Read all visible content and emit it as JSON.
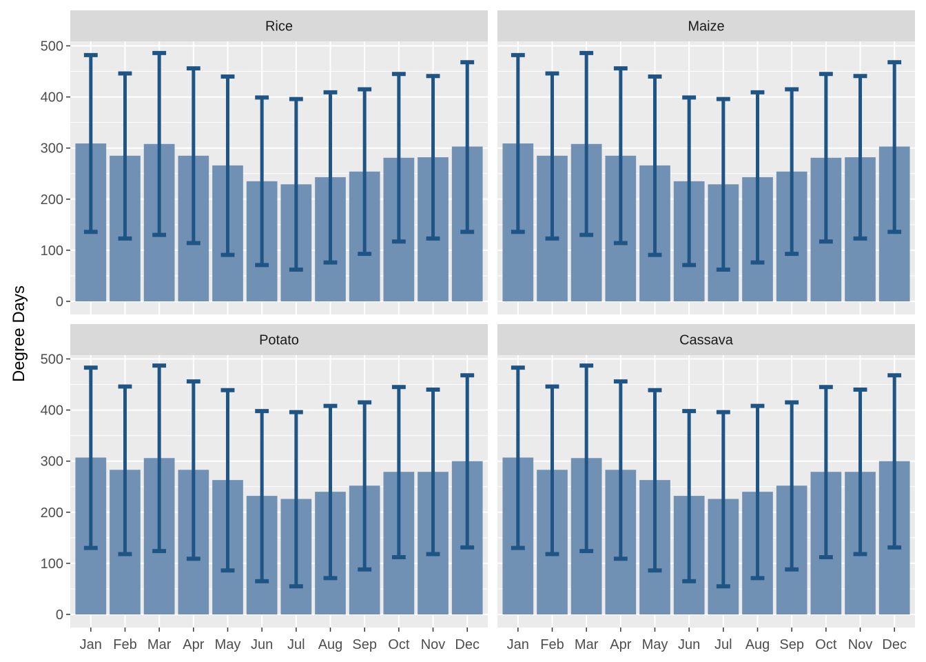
{
  "chart_data": {
    "type": "bar",
    "ylabel": "Degree Days",
    "xlabel": "",
    "ylim": [
      0,
      500
    ],
    "y_ticks": [
      0,
      100,
      200,
      300,
      400,
      500
    ],
    "categories": [
      "Jan",
      "Feb",
      "Mar",
      "Apr",
      "May",
      "Jun",
      "Jul",
      "Aug",
      "Sep",
      "Oct",
      "Nov",
      "Dec"
    ],
    "grid": true,
    "colors": {
      "bar": "#7191B4",
      "errorbar": "#1F5585",
      "panel_bg": "#EBEBEB",
      "strip_bg": "#D9D9D9",
      "grid": "#FFFFFF"
    },
    "panels": [
      {
        "name": "Rice",
        "values": [
          309,
          285,
          308,
          285,
          266,
          235,
          229,
          243,
          254,
          281,
          282,
          303
        ],
        "lower": [
          136,
          123,
          130,
          114,
          91,
          71,
          62,
          76,
          93,
          117,
          123,
          136
        ],
        "upper": [
          482,
          446,
          486,
          456,
          440,
          399,
          396,
          409,
          415,
          445,
          441,
          468
        ]
      },
      {
        "name": "Maize",
        "values": [
          309,
          285,
          308,
          285,
          266,
          235,
          229,
          243,
          254,
          281,
          282,
          303
        ],
        "lower": [
          136,
          123,
          130,
          114,
          91,
          71,
          62,
          76,
          93,
          117,
          123,
          136
        ],
        "upper": [
          482,
          446,
          486,
          456,
          440,
          399,
          396,
          409,
          415,
          445,
          441,
          468
        ]
      },
      {
        "name": "Potato",
        "values": [
          307,
          283,
          306,
          283,
          263,
          232,
          226,
          240,
          252,
          279,
          279,
          300
        ],
        "lower": [
          130,
          118,
          124,
          109,
          86,
          65,
          55,
          71,
          88,
          112,
          118,
          131
        ],
        "upper": [
          483,
          446,
          487,
          456,
          439,
          398,
          396,
          408,
          415,
          445,
          440,
          468
        ]
      },
      {
        "name": "Cassava",
        "values": [
          307,
          283,
          306,
          283,
          263,
          232,
          226,
          240,
          252,
          279,
          279,
          300
        ],
        "lower": [
          130,
          118,
          124,
          109,
          86,
          65,
          55,
          71,
          88,
          112,
          118,
          131
        ],
        "upper": [
          483,
          446,
          487,
          456,
          439,
          398,
          396,
          408,
          415,
          445,
          440,
          468
        ]
      }
    ]
  }
}
